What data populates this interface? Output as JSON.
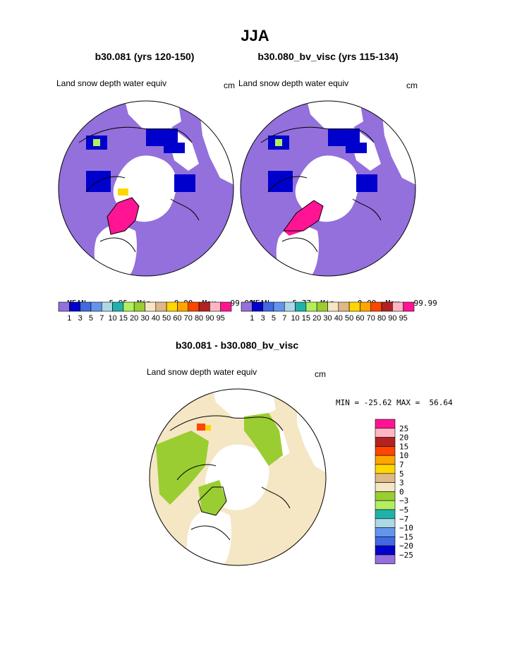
{
  "title": "JJA",
  "panels": [
    {
      "case": "b30.081 (yrs 120-150)",
      "field_label": "Land snow depth water equiv",
      "units": "cm",
      "stats": {
        "mean": "5.95",
        "min": "0.00",
        "max": "99.99"
      },
      "stats_labels": {
        "mean": "MEAN=",
        "min": "Min=",
        "max": "Max="
      }
    },
    {
      "case": "b30.080_bv_visc (yrs 115-134)",
      "field_label": "Land snow depth water equiv",
      "units": "cm",
      "stats": {
        "mean": "5.77",
        "min": "0.00",
        "max": "99.99"
      },
      "stats_labels": {
        "mean": "MEAN=",
        "min": "Min=",
        "max": "Max="
      }
    }
  ],
  "field_colorbar": {
    "colors": [
      "#9370db",
      "#0000cd",
      "#4169e1",
      "#6495ed",
      "#add8e6",
      "#20b2aa",
      "#b3ee5f",
      "#9acd32",
      "#f5e6c4",
      "#deb887",
      "#ffd700",
      "#ffa500",
      "#ff4500",
      "#b22222",
      "#ffb6c1",
      "#ff1493"
    ],
    "labels": [
      "1",
      "3",
      "5",
      "7",
      "10",
      "15",
      "20",
      "30",
      "40",
      "50",
      "60",
      "70",
      "80",
      "90",
      "95"
    ]
  },
  "diff_panel": {
    "title": "b30.081 - b30.080_bv_visc",
    "field_label": "Land snow depth water equiv",
    "units": "cm",
    "minmax_text": "MIN = -25.62 MAX =  56.64"
  },
  "diff_colorbar": {
    "colors": [
      "#ff1493",
      "#ffb6c1",
      "#b22222",
      "#ff4500",
      "#ffa500",
      "#ffd700",
      "#deb887",
      "#f5e6c4",
      "#9acd32",
      "#b3ee5f",
      "#20b2aa",
      "#add8e6",
      "#6495ed",
      "#4169e1",
      "#0000cd",
      "#9370db"
    ],
    "labels": [
      "25",
      "20",
      "15",
      "10",
      "7",
      "5",
      "3",
      "0",
      "−3",
      "−5",
      "−7",
      "−10",
      "−15",
      "−20",
      "−25"
    ]
  },
  "map_colors": {
    "ocean": "#ffffff",
    "land_low": "#9370db",
    "snow_high": "#ff1493",
    "diff_land": "#f5e6c4",
    "diff_neg": "#9acd32",
    "coast": "#000000"
  }
}
